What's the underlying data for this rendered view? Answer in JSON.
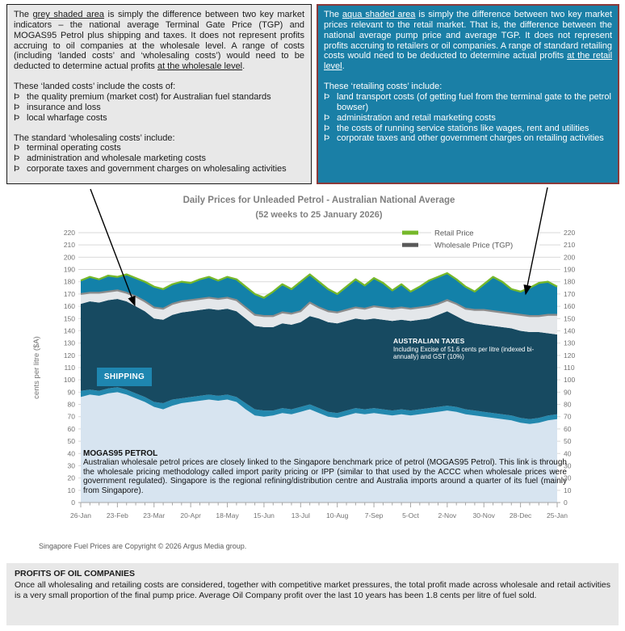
{
  "bullet": "Þ",
  "boxes": {
    "wholesale": {
      "para1": [
        {
          "t": "The "
        },
        {
          "t": "grey shaded area",
          "u": true
        },
        {
          "t": " is simply the difference between two key market indicators – the national average Terminal Gate Price (TGP) and MOGAS95 Petrol plus shipping and taxes. It does not represent profits accruing to oil companies at the wholesale level. A range of costs (including ‘landed costs’ and ‘wholesaling costs’) would need to be deducted to determine actual profits "
        },
        {
          "t": "at the wholesale level",
          "u": true
        },
        {
          "t": "."
        }
      ],
      "list1_intro": "These ‘landed costs’ include the costs of:",
      "list1": [
        "the quality premium (market cost) for Australian fuel standards",
        "insurance and loss",
        "local wharfage costs"
      ],
      "list2_intro": "The standard ‘wholesaling costs’ include:",
      "list2": [
        "terminal operating costs",
        "administration and wholesale marketing costs",
        "corporate taxes and government charges on wholesaling activities"
      ]
    },
    "retail": {
      "para1": [
        {
          "t": "The "
        },
        {
          "t": "aqua shaded area",
          "u": true
        },
        {
          "t": " is simply the difference between two key market prices relevant to the retail market. That is, the difference between the national average pump price and average TGP. It does not represent profits accruing to retailers or oil companies. A range of standard retailing costs would need to be deducted to determine actual profits "
        },
        {
          "t": "at the retail level",
          "u": true
        },
        {
          "t": "."
        }
      ],
      "list_intro": "These ‘retailing costs’ include:",
      "list": [
        "land transport costs (of getting fuel from the terminal gate to the petrol bowser)",
        "administration and retail marketing costs",
        "the costs of running service stations like wages, rent and utilities",
        "corporate taxes and other government charges on retailing activities"
      ]
    },
    "profits": {
      "title": "PROFITS OF OIL COMPANIES",
      "body": "Once all wholesaling and retailing costs are considered, together with competitive market pressures, the total profit made across wholesale and retail activities is a very small proportion of the final pump price. Average Oil Company profit over the last 10 years has been 1.8 cents per litre of fuel sold."
    }
  },
  "footer": "Singapore Fuel Prices are Copyright © 2026 Argus Media group.",
  "chart_data": {
    "type": "area",
    "title": "Daily Prices for Unleaded Petrol - Australian National Average",
    "subtitle": "(52 weeks to 25 January 2026)",
    "ylabel": "cents per litre ($A)",
    "ylim": [
      0,
      220
    ],
    "ytick_step": 10,
    "x_unit": "weeks",
    "x_tick_every": 4,
    "x_ticklabels": [
      "26-Jan",
      "23-Feb",
      "23-Mar",
      "20-Apr",
      "18-May",
      "15-Jun",
      "13-Jul",
      "10-Aug",
      "7-Sep",
      "5-Oct",
      "2-Nov",
      "30-Nov",
      "28-Dec",
      "25-Jan"
    ],
    "grid": true,
    "legend_position": "top-right",
    "legend": [
      {
        "label": "Retail Price",
        "color": "#76B82A"
      },
      {
        "label": "Wholesale Price (TGP)",
        "color": "#595959"
      }
    ],
    "series": [
      {
        "name": "MOGAS95 Petrol price",
        "role": "stack-top",
        "color": "#D7E4F0",
        "values": [
          86,
          88,
          87,
          89,
          90,
          88,
          85,
          82,
          78,
          76,
          79,
          81,
          82,
          83,
          84,
          83,
          84,
          82,
          76,
          71,
          70,
          71,
          73,
          72,
          74,
          76,
          73,
          70,
          69,
          71,
          73,
          72,
          73,
          72,
          71,
          72,
          71,
          72,
          73,
          74,
          75,
          74,
          72,
          71,
          70,
          69,
          68,
          67,
          65,
          64,
          65,
          67,
          68
        ]
      },
      {
        "name": "MOGAS95 plus shipping",
        "role": "stack-top",
        "color": "#2388AE",
        "values": [
          91,
          92,
          91,
          93,
          94,
          92,
          89,
          86,
          82,
          81,
          84,
          85,
          86,
          87,
          88,
          87,
          88,
          86,
          81,
          76,
          75,
          75,
          77,
          76,
          78,
          80,
          77,
          74,
          73,
          75,
          77,
          76,
          77,
          76,
          75,
          76,
          75,
          76,
          77,
          78,
          79,
          78,
          76,
          75,
          74,
          73,
          72,
          71,
          69,
          68,
          69,
          71,
          72
        ]
      },
      {
        "name": "MOGAS95 plus shipping and Australian taxes",
        "role": "stack-top",
        "color": "#174A61",
        "values": [
          162,
          164,
          163,
          165,
          166,
          164,
          160,
          156,
          150,
          149,
          153,
          155,
          156,
          157,
          158,
          157,
          158,
          156,
          150,
          144,
          143,
          143,
          146,
          145,
          147,
          152,
          150,
          147,
          146,
          148,
          150,
          149,
          150,
          149,
          148,
          149,
          148,
          149,
          150,
          153,
          156,
          152,
          148,
          146,
          145,
          144,
          143,
          142,
          140,
          139,
          139,
          138,
          137
        ]
      },
      {
        "name": "Wholesale Price (TGP) — grey shaded area above taxes",
        "role": "stack-top",
        "color": "#E4E7EA",
        "values": [
          170,
          171,
          171,
          172,
          173,
          171,
          168,
          164,
          159,
          158,
          162,
          164,
          165,
          166,
          167,
          166,
          167,
          165,
          159,
          153,
          152,
          152,
          155,
          154,
          156,
          163,
          159,
          156,
          155,
          157,
          159,
          158,
          160,
          159,
          158,
          159,
          158,
          159,
          160,
          162,
          165,
          162,
          158,
          157,
          157,
          156,
          155,
          154,
          153,
          152,
          152,
          153,
          153
        ]
      },
      {
        "name": "Retail Price — aqua shaded area above TGP",
        "role": "stack-top",
        "color": "#1381A9",
        "values": [
          181,
          184,
          182,
          185,
          184,
          186,
          183,
          180,
          176,
          174,
          178,
          180,
          179,
          182,
          184,
          181,
          184,
          182,
          176,
          170,
          167,
          172,
          178,
          174,
          180,
          186,
          180,
          174,
          170,
          176,
          182,
          177,
          183,
          179,
          173,
          178,
          172,
          176,
          181,
          184,
          187,
          182,
          176,
          172,
          178,
          184,
          180,
          174,
          172,
          175,
          179,
          180,
          176
        ]
      }
    ],
    "lines": [
      {
        "name": "Wholesale Price (TGP)",
        "series_index": 3,
        "color": "#8C8C8C"
      },
      {
        "name": "Retail Price",
        "series_index": 4,
        "color": "#76B82A"
      }
    ],
    "annotations": {
      "shipping_label": "SHIPPING",
      "taxes_title": "AUSTRALIAN TAXES",
      "taxes_body": "Including Excise of 51.6 cents per litre (indexed bi-annually) and GST (10%)",
      "mogas_title": "MOGAS95 PETROL",
      "mogas_body": "Australian wholesale petrol prices are closely linked to the Singapore benchmark price of petrol (MOGAS95 Petrol). This link is through the wholesale pricing methodology called import parity pricing or IPP (similar to that used by the ACCC when wholesale prices were government regulated). Singapore is the regional refining/distribution centre and Australia imports around a quarter of its fuel (mainly from Singapore)."
    },
    "colors": {
      "grid": "#D9D9D9",
      "axis": "#A6A6A6",
      "tick_text": "#737373",
      "legend_text": "#595959",
      "arrow": "#000000"
    }
  }
}
